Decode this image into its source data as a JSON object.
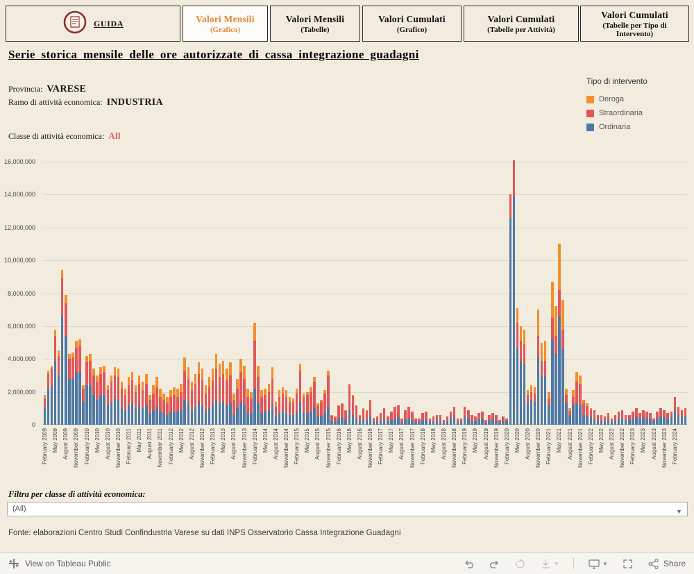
{
  "tabs": {
    "guida": {
      "label": "GUIDA"
    },
    "active_color": "#e5863b",
    "items": [
      {
        "line1": "Valori Mensili",
        "line2": "(Grafico)",
        "active": true
      },
      {
        "line1": "Valori Mensili",
        "line2": "(Tabelle)",
        "active": false
      },
      {
        "line1": "Valori Cumulati",
        "line2": "(Grafico)",
        "active": false
      },
      {
        "line1": "Valori Cumulati",
        "line2": "(Tabelle per Attività)",
        "active": false
      },
      {
        "line1": "Valori Cumulati",
        "line2": "(Tabelle per Tipo di Intervento)",
        "active": false
      }
    ]
  },
  "page": {
    "title": "Serie storica mensile delle ore autorizzate di cassa integrazione guadagni",
    "provincia_label": "Provincia:",
    "provincia_value": "VARESE",
    "ramo_label": "Ramo di attività economica:",
    "ramo_value": "INDUSTRIA",
    "classe_label": "Classe di attività economica:",
    "classe_value": "All"
  },
  "legend": {
    "title": "Tipo di intervento",
    "items": [
      {
        "label": "Deroga",
        "color": "#f28e2b"
      },
      {
        "label": "Straordinaria",
        "color": "#e15759"
      },
      {
        "label": "Ordinaria",
        "color": "#4e79a7"
      }
    ]
  },
  "filter": {
    "label": "Filtra per classe di attività economica:",
    "value": "(All)"
  },
  "footer": {
    "source": "Fonte: elaborazioni Centro Studi Confindustria Varese su dati INPS Osservatorio Cassa Integrazione Guadagni"
  },
  "toolbar": {
    "view_label": "View on Tableau Public",
    "share_label": "Share"
  },
  "icons": {
    "tab_logo": "confindustria-guida-logo",
    "toolbar_left": "tableau-logo-icon",
    "toolbar_right": [
      "undo-icon",
      "redo-icon",
      "replay-icon",
      "download-icon",
      "device-preview-icon",
      "fullscreen-icon",
      "share-icon"
    ]
  },
  "chart_data": {
    "type": "bar",
    "stacked": true,
    "title": "Serie storica mensile delle ore autorizzate di cassa integrazione guadagni",
    "xlabel": "",
    "ylabel": "",
    "unit": "ore autorizzate",
    "grid": true,
    "legend_position": "top-right",
    "ylim": [
      0,
      16000000
    ],
    "ytick_step": 2000000,
    "ytick_labels": [
      "0",
      "2,000,000",
      "4,000,000",
      "6,000,000",
      "8,000,000",
      "10,000,000",
      "12,000,000",
      "14,000,000",
      "16,000,000"
    ],
    "x_label_every": 3,
    "x_range_note": "monthly bars from February 2009 to May 2024, labels every 3 months",
    "x_tick_labels": [
      "February 2009",
      "May 2009",
      "August 2009",
      "November 2009",
      "February 2010",
      "May 2010",
      "August 2010",
      "November 2010",
      "February 2011",
      "May 2011",
      "August 2011",
      "November 2011",
      "February 2012",
      "May 2012",
      "August 2012",
      "November 2012",
      "February 2013",
      "May 2013",
      "August 2013",
      "November 2013",
      "February 2014",
      "May 2014",
      "August 2014",
      "November 2014",
      "February 2015",
      "May 2015",
      "August 2015",
      "November 2015",
      "February 2016",
      "May 2016",
      "August 2016",
      "November 2016",
      "February 2017",
      "May 2017",
      "August 2017",
      "November 2017",
      "February 2018",
      "May 2018",
      "August 2018",
      "November 2018",
      "February 2019",
      "May 2019",
      "August 2019",
      "November 2019",
      "February 2020",
      "May 2020",
      "August 2020",
      "November 2020",
      "February 2021",
      "May 2021",
      "August 2021",
      "November 2021",
      "February 2022",
      "May 2022",
      "August 2022",
      "November 2022",
      "February 2023",
      "May 2023",
      "August 2023",
      "November 2023",
      "February 2024"
    ],
    "series": [
      {
        "name": "Ordinaria",
        "color": "#4e79a7",
        "values": [
          1000000.0,
          2200000.0,
          2400000.0,
          3900000.0,
          3000000.0,
          6600000.0,
          5400000.0,
          2800000.0,
          2800000.0,
          3200000.0,
          3200000.0,
          1400000.0,
          2400000.0,
          2400000.0,
          1800000.0,
          1500000.0,
          1800000.0,
          1800000.0,
          1200000.0,
          1400000.0,
          1600000.0,
          1500000.0,
          1100000.0,
          900000.0,
          1200000.0,
          1300000.0,
          1000000.0,
          1200000.0,
          1000000.0,
          1200000.0,
          700000.0,
          900000.0,
          1100000.0,
          800000.0,
          700000.0,
          600000.0,
          800000.0,
          800000.0,
          800000.0,
          900000.0,
          1500000.0,
          1300000.0,
          900000.0,
          1100000.0,
          1400000.0,
          1200000.0,
          800000.0,
          1000000.0,
          1200000.0,
          1500000.0,
          1300000.0,
          1400000.0,
          1200000.0,
          1300000.0,
          600000.0,
          1000000.0,
          1400000.0,
          1200000.0,
          700000.0,
          700000.0,
          2200000.0,
          1300000.0,
          700000.0,
          800000.0,
          900000.0,
          1200000.0,
          500000.0,
          700000.0,
          800000.0,
          700000.0,
          600000.0,
          600000.0,
          800000.0,
          1400000.0,
          700000.0,
          700000.0,
          800000.0,
          1000000.0,
          500000.0,
          500000.0,
          700000.0,
          1100000.0,
          200000.0,
          200000.0,
          400000.0,
          450000.0,
          300000.0,
          900000.0,
          600000.0,
          400000.0,
          200000.0,
          350000.0,
          300000.0,
          500000.0,
          150000.0,
          200000.0,
          250000.0,
          350000.0,
          200000.0,
          300000.0,
          400000.0,
          450000.0,
          150000.0,
          350000.0,
          400000.0,
          300000.0,
          150000.0,
          180000.0,
          300000.0,
          350000.0,
          180000.0,
          220000.0,
          270000.0,
          270000.0,
          140000.0,
          220000.0,
          360000.0,
          500000.0,
          180000.0,
          180000.0,
          500000.0,
          400000.0,
          270000.0,
          220000.0,
          320000.0,
          360000.0,
          140000.0,
          270000.0,
          320000.0,
          270000.0,
          140000.0,
          250000.0,
          200000.0,
          12600000.0,
          13900000.0,
          4700000.0,
          3900000.0,
          3700000.0,
          1300000.0,
          1500000.0,
          1400000.0,
          4200000.0,
          3000000.0,
          3000000.0,
          1200000.0,
          5200000.0,
          4300000.0,
          6600000.0,
          4600000.0,
          1300000.0,
          600000.0,
          1200000.0,
          1300000.0,
          1200000.0,
          600000.0,
          550000.0,
          450000.0,
          400000.0,
          270000.0,
          270000.0,
          220000.0,
          320000.0,
          180000.0,
          270000.0,
          360000.0,
          400000.0,
          270000.0,
          300000.0,
          400000.0,
          500000.0,
          350000.0,
          450000.0,
          400000.0,
          350000.0,
          200000.0,
          400000.0,
          500000.0,
          450000.0,
          350000.0,
          450000.0,
          900000.0,
          600000.0,
          500000.0,
          550000.0
        ]
      },
      {
        "name": "Straordinaria",
        "color": "#e15759",
        "values": [
          600000.0,
          900000.0,
          1000000.0,
          1500000.0,
          1200000.0,
          2300000.0,
          2000000.0,
          1200000.0,
          1300000.0,
          1500000.0,
          1600000.0,
          800000.0,
          1400000.0,
          1500000.0,
          1200000.0,
          1100000.0,
          1300000.0,
          1400000.0,
          900000.0,
          1200000.0,
          1400000.0,
          1400000.0,
          1100000.0,
          900000.0,
          1200000.0,
          1400000.0,
          1000000.0,
          1300000.0,
          1100000.0,
          1300000.0,
          800000.0,
          1000000.0,
          1200000.0,
          900000.0,
          800000.0,
          700000.0,
          900000.0,
          1000000.0,
          900000.0,
          1100000.0,
          1800000.0,
          1500000.0,
          1200000.0,
          1400000.0,
          1700000.0,
          1500000.0,
          1100000.0,
          1300000.0,
          1500000.0,
          1900000.0,
          1600000.0,
          1700000.0,
          1500000.0,
          1700000.0,
          900000.0,
          1200000.0,
          1800000.0,
          1600000.0,
          1000000.0,
          900000.0,
          2900000.0,
          1600000.0,
          1000000.0,
          1000000.0,
          1100000.0,
          1600000.0,
          600000.0,
          1000000.0,
          1100000.0,
          1000000.0,
          800000.0,
          800000.0,
          1100000.0,
          1900000.0,
          1000000.0,
          1100000.0,
          1200000.0,
          1600000.0,
          700000.0,
          900000.0,
          1200000.0,
          1900000.0,
          350000.0,
          280000.0,
          750000.0,
          800000.0,
          570000.0,
          1500000.0,
          1150000.0,
          770000.0,
          380000.0,
          620000.0,
          580000.0,
          970000.0,
          240000.0,
          300000.0,
          450000.0,
          650000.0,
          300000.0,
          500000.0,
          700000.0,
          750000.0,
          250000.0,
          550000.0,
          700000.0,
          500000.0,
          250000.0,
          220000.0,
          400000.0,
          450000.0,
          220000.0,
          280000.0,
          330000.0,
          330000.0,
          160000.0,
          280000.0,
          440000.0,
          600000.0,
          220000.0,
          220000.0,
          600000.0,
          500000.0,
          330000.0,
          280000.0,
          380000.0,
          440000.0,
          160000.0,
          330000.0,
          380000.0,
          330000.0,
          160000.0,
          250000.0,
          200000.0,
          1400000.0,
          2200000.0,
          1500000.0,
          1200000.0,
          1200000.0,
          500000.0,
          500000.0,
          500000.0,
          1200000.0,
          900000.0,
          900000.0,
          400000.0,
          1300000.0,
          1100000.0,
          1600000.0,
          1200000.0,
          500000.0,
          250000.0,
          500000.0,
          1300000.0,
          1300000.0,
          700000.0,
          600000.0,
          500000.0,
          500000.0,
          330000.0,
          330000.0,
          280000.0,
          380000.0,
          220000.0,
          330000.0,
          440000.0,
          500000.0,
          330000.0,
          300000.0,
          400000.0,
          500000.0,
          350000.0,
          450000.0,
          400000.0,
          350000.0,
          200000.0,
          400000.0,
          500000.0,
          450000.0,
          350000.0,
          350000.0,
          800000.0,
          500000.0,
          400000.0,
          450000.0
        ]
      },
      {
        "name": "Deroga",
        "color": "#f28e2b",
        "values": [
          200000.0,
          200000.0,
          200000.0,
          400000.0,
          300000.0,
          500000.0,
          500000.0,
          300000.0,
          300000.0,
          400000.0,
          400000.0,
          200000.0,
          400000.0,
          400000.0,
          400000.0,
          400000.0,
          400000.0,
          400000.0,
          300000.0,
          400000.0,
          500000.0,
          500000.0,
          400000.0,
          400000.0,
          500000.0,
          500000.0,
          400000.0,
          500000.0,
          500000.0,
          600000.0,
          300000.0,
          500000.0,
          600000.0,
          500000.0,
          400000.0,
          400000.0,
          400000.0,
          500000.0,
          500000.0,
          500000.0,
          800000.0,
          700000.0,
          500000.0,
          600000.0,
          700000.0,
          700000.0,
          500000.0,
          600000.0,
          700000.0,
          900000.0,
          800000.0,
          800000.0,
          700000.0,
          800000.0,
          400000.0,
          600000.0,
          800000.0,
          800000.0,
          500000.0,
          400000.0,
          1100000.0,
          700000.0,
          400000.0,
          400000.0,
          500000.0,
          700000.0,
          300000.0,
          400000.0,
          400000.0,
          400000.0,
          300000.0,
          200000.0,
          300000.0,
          400000.0,
          200000.0,
          200000.0,
          300000.0,
          300000.0,
          100000.0,
          100000.0,
          200000.0,
          300000.0,
          50000.0,
          20000.0,
          50000.0,
          50000.0,
          30000.0,
          100000.0,
          50000.0,
          30000.0,
          20000.0,
          30000.0,
          20000.0,
          30000.0,
          10000.0,
          0,
          0,
          0,
          0,
          0,
          0,
          0,
          0,
          0,
          0,
          0,
          0,
          0,
          0,
          0,
          0,
          0,
          0,
          0,
          0,
          0,
          0,
          0,
          0,
          0,
          0,
          0,
          0,
          0,
          0,
          0,
          0,
          0,
          0,
          0,
          0,
          0,
          0,
          0,
          0,
          900000.0,
          900000.0,
          900000.0,
          300000.0,
          400000.0,
          400000.0,
          1600000.0,
          1100000.0,
          1200000.0,
          400000.0,
          2200000.0,
          1800000.0,
          2800000.0,
          1800000.0,
          400000.0,
          150000.0,
          400000.0,
          600000.0,
          500000.0,
          200000.0,
          150000.0,
          50000.0,
          0,
          0,
          0,
          0,
          0,
          0,
          0,
          0,
          0,
          0,
          0,
          0,
          0,
          0,
          0,
          0,
          0,
          0,
          0,
          0,
          0,
          0,
          0,
          0,
          0,
          0,
          0
        ]
      }
    ]
  }
}
